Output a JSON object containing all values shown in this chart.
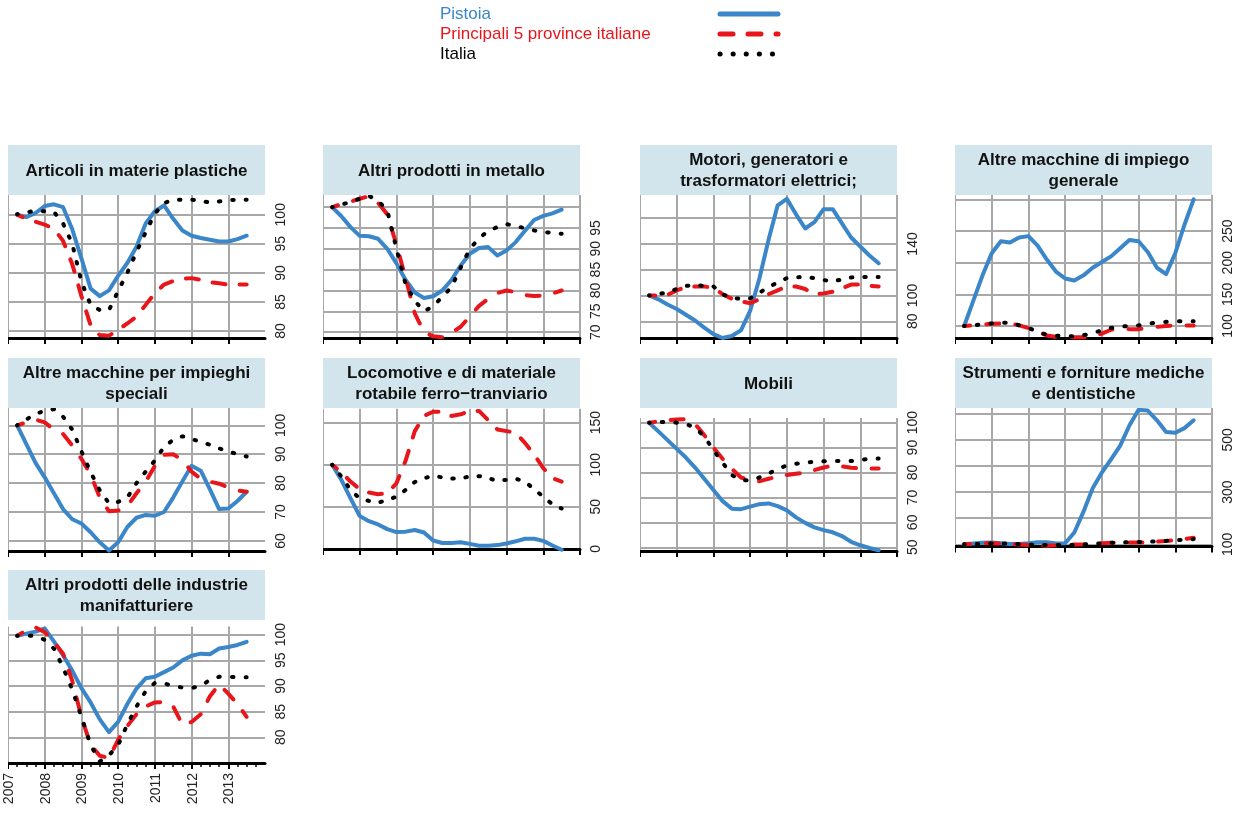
{
  "chart_data": [
    {
      "type": "line",
      "title": "Articoli in materie plastiche",
      "legend": "top",
      "marker": "none",
      "grid": true,
      "tick_labels": "y",
      "xlim": [
        2007,
        2014
      ],
      "xticks": [
        2007,
        2008,
        2009,
        2010,
        2011,
        2012,
        2013
      ],
      "ylim": [
        78.8,
        103.4
      ],
      "yticks": [
        80,
        85,
        90,
        95,
        100
      ],
      "x": [
        2007.25,
        2007.5,
        2007.75,
        2008,
        2008.25,
        2008.5,
        2008.75,
        2009,
        2009.25,
        2009.5,
        2009.75,
        2010,
        2010.25,
        2010.5,
        2010.75,
        2011,
        2011.25,
        2011.5,
        2011.75,
        2012,
        2012.25,
        2012.5,
        2012.75,
        2013,
        2013.25,
        2013.5
      ],
      "series": [
        {
          "name": "Pistoia",
          "color": "#3a86c8",
          "line_style": "solid",
          "values": [
            100,
            99.6,
            100.3,
            101.5,
            101.8,
            101.3,
            97.5,
            92.5,
            87.3,
            86,
            87,
            89.5,
            91.7,
            94.5,
            98.5,
            100.6,
            101.6,
            99.3,
            97.3,
            96.4,
            96,
            95.7,
            95.4,
            95.4,
            95.8,
            96.4
          ]
        },
        {
          "name": "Principali 5 province italiane",
          "color": "#e8151b",
          "line_style": "dashed",
          "values": [
            100,
            99.3,
            98.8,
            98.3,
            97.6,
            95.5,
            91.5,
            86,
            81,
            79.3,
            79.2,
            80.2,
            81.3,
            82.5,
            84.5,
            86.5,
            88,
            88.6,
            89,
            89.1,
            88.8,
            88.4,
            88.2,
            88,
            88,
            88
          ]
        },
        {
          "name": "Italia",
          "color": "#000000",
          "line_style": "dotted",
          "values": [
            100.1,
            100.4,
            100.7,
            100.6,
            100.5,
            98.5,
            95,
            88.5,
            84.5,
            83.6,
            83.6,
            86.9,
            90,
            93.6,
            97,
            100.2,
            102,
            102.6,
            102.6,
            102.6,
            102.4,
            102.1,
            102.3,
            102.5,
            102.6,
            102.6
          ]
        }
      ]
    },
    {
      "type": "line",
      "title": "Altri prodotti in metallo",
      "marker": "none",
      "grid": true,
      "tick_labels": "y",
      "ylim": [
        68.6,
        102.9
      ],
      "yticks": [
        70,
        75,
        80,
        85,
        90,
        95,
        {
          "value": 100,
          "label": null
        }
      ],
      "categories": [
        null,
        null,
        null,
        null,
        null,
        null,
        null,
        null,
        null,
        null,
        null,
        null,
        null,
        null,
        null,
        null,
        null,
        null,
        null,
        null,
        null,
        null,
        null,
        null,
        null,
        null,
        null,
        null,
        null
      ],
      "series": [
        {
          "color": "#3a86c8",
          "line_style": "solid",
          "values": [
            null,
            100,
            97.8,
            95.2,
            93.1,
            93,
            92.4,
            90,
            86.5,
            82.5,
            79.5,
            78.2,
            78.6,
            80,
            82.5,
            86,
            88.8,
            90.2,
            90.4,
            88.4,
            89.6,
            91.6,
            94.3,
            96.9,
            97.9,
            98.5,
            99.4,
            null,
            null
          ]
        },
        {
          "color": "#e8151b",
          "line_style": "dashed",
          "values": [
            null,
            100,
            100.7,
            101.3,
            102,
            102.6,
            101,
            98.3,
            91,
            83,
            74.5,
            70,
            69,
            68.8,
            69.8,
            71.3,
            73.8,
            76.3,
            78,
            79.4,
            80,
            79.6,
            78.9,
            78.7,
            78.8,
            79.3,
            80,
            null,
            null
          ]
        },
        {
          "color": "#000000",
          "line_style": "dotted",
          "values": [
            null,
            100,
            100.6,
            101.2,
            102,
            102.7,
            101.5,
            99.2,
            90,
            81.5,
            77.5,
            75,
            76.2,
            78.5,
            80.8,
            85.5,
            90,
            92.5,
            94.3,
            95.2,
            95.9,
            95.5,
            94.9,
            94.4,
            94,
            93.8,
            93.6,
            null,
            null
          ]
        }
      ]
    },
    {
      "type": "line",
      "title": "Motori, generatori e trasformatori elettrici;",
      "marker": "none",
      "grid": true,
      "tick_labels": "y",
      "ylim": [
        67,
        178
      ],
      "yticks": [
        80,
        100,
        {
          "value": 120,
          "label": null
        },
        140,
        {
          "value": 160,
          "label": null
        }
      ],
      "categories": [
        null,
        null,
        null,
        null,
        null,
        null,
        null,
        null,
        null,
        null,
        null,
        null,
        null,
        null,
        null,
        null,
        null,
        null,
        null,
        null,
        null,
        null,
        null,
        null,
        null,
        null,
        null,
        null,
        null
      ],
      "series": [
        {
          "color": "#3a86c8",
          "line_style": "solid",
          "values": [
            null,
            100,
            97,
            93,
            89.5,
            85,
            80.6,
            75,
            70,
            67,
            68.6,
            73,
            88,
            113,
            143,
            170,
            175,
            163,
            152,
            157,
            167,
            167,
            156,
            145,
            138,
            131,
            125,
            null,
            null
          ]
        },
        {
          "color": "#e8151b",
          "line_style": "dashed",
          "values": [
            null,
            100,
            100,
            100.5,
            104,
            106.5,
            107,
            107,
            106,
            101,
            97.5,
            95.5,
            94,
            97,
            101,
            104,
            107,
            107,
            105,
            101,
            101.5,
            103,
            105.5,
            108.5,
            108.5,
            107.5,
            107,
            null,
            null
          ]
        },
        {
          "color": "#000000",
          "line_style": "dotted",
          "values": [
            null,
            100,
            101,
            102.5,
            105,
            107.5,
            108,
            107.5,
            107,
            101,
            98,
            97.5,
            97.8,
            102,
            106.6,
            110,
            113.5,
            114.2,
            114.4,
            113.5,
            112,
            111,
            112.5,
            114,
            114.4,
            114.4,
            114.4,
            null,
            null
          ]
        }
      ]
    },
    {
      "type": "line",
      "title": "Altre macchine di impiego generale",
      "marker": "none",
      "grid": true,
      "tick_labels": "y",
      "ylim": [
        81,
        307
      ],
      "yticks": [
        100,
        150,
        200,
        250,
        {
          "value": 300,
          "label": null
        }
      ],
      "categories": [
        null,
        null,
        null,
        null,
        null,
        null,
        null,
        null,
        null,
        null,
        null,
        null,
        null,
        null,
        null,
        null,
        null,
        null,
        null,
        null,
        null,
        null,
        null,
        null,
        null,
        null,
        null,
        null,
        null
      ],
      "series": [
        {
          "color": "#3a86c8",
          "line_style": "solid",
          "values": [
            null,
            100,
            140,
            180,
            215,
            234,
            232,
            240,
            242,
            227,
            205,
            186,
            175,
            172,
            180,
            192,
            201,
            210,
            223,
            236,
            234,
            217,
            192,
            182,
            215,
            260,
            300,
            null,
            null
          ]
        },
        {
          "color": "#e8151b",
          "line_style": "dashed",
          "values": [
            null,
            100,
            101,
            102.5,
            103.5,
            104,
            104.4,
            101,
            96.8,
            91,
            85,
            83,
            82.5,
            82.3,
            82,
            82,
            88,
            94,
            96,
            95,
            95,
            97,
            98.5,
            100,
            101,
            101,
            100.6,
            null,
            null
          ]
        },
        {
          "color": "#000000",
          "line_style": "dotted",
          "values": [
            null,
            100,
            101.2,
            102.3,
            104,
            105,
            105.5,
            101,
            97,
            91,
            86,
            84.5,
            84,
            83.5,
            85.5,
            88.6,
            93,
            97,
            99,
            100,
            101,
            103.5,
            105.7,
            106.5,
            107.3,
            107.6,
            107.6,
            null,
            null
          ]
        }
      ]
    },
    {
      "type": "line",
      "title": "Altre macchine per impieghi speciali",
      "marker": "none",
      "grid": true,
      "tick_labels": "y",
      "xlim": [
        2007,
        2014
      ],
      "xticks": [
        2007,
        2008,
        2009,
        2010,
        2011,
        2012,
        2013
      ],
      "ylim": [
        56.5,
        106
      ],
      "yticks": [
        60,
        70,
        80,
        90,
        100
      ],
      "x": [
        2007.25,
        2007.5,
        2007.75,
        2008,
        2008.25,
        2008.5,
        2008.75,
        2009,
        2009.25,
        2009.5,
        2009.75,
        2010,
        2010.25,
        2010.5,
        2010.75,
        2011,
        2011.25,
        2011.5,
        2011.75,
        2012,
        2012.25,
        2012.5,
        2012.75,
        2013,
        2013.25,
        2013.5
      ],
      "series": [
        {
          "color": "#3a86c8",
          "line_style": "solid",
          "values": [
            100,
            93.5,
            87,
            82,
            76.5,
            71,
            67.5,
            66,
            63,
            59.5,
            56.7,
            59.5,
            64.8,
            68,
            69,
            68.7,
            70,
            75,
            80.6,
            86,
            84.3,
            77.8,
            71,
            71.2,
            73.8,
            77
          ]
        },
        {
          "color": "#e8151b",
          "line_style": "dashed",
          "values": [
            100,
            101,
            102,
            101,
            98.5,
            97,
            93,
            88.4,
            83,
            75,
            70.3,
            70.5,
            72,
            76.5,
            80.5,
            86,
            89.8,
            90,
            88,
            84,
            81.5,
            80.5,
            79.8,
            78.5,
            77.5,
            77
          ]
        },
        {
          "color": "#000000",
          "line_style": "dotted",
          "values": [
            100,
            102,
            104,
            105,
            105.6,
            103,
            98.5,
            91,
            83.8,
            77.5,
            73,
            73.5,
            75,
            80,
            84,
            87.8,
            92.5,
            95,
            96.2,
            95.3,
            94.2,
            93.3,
            92,
            91,
            90,
            89.2
          ]
        }
      ]
    },
    {
      "type": "line",
      "title": "Locomotive e di materiale rotabile ferro−tranviario",
      "marker": "none",
      "grid": true,
      "tick_labels": "y",
      "ylim": [
        -2.5,
        166.5
      ],
      "yticks": [
        0,
        50,
        100,
        150
      ],
      "categories": [
        null,
        null,
        null,
        null,
        null,
        null,
        null,
        null,
        null,
        null,
        null,
        null,
        null,
        null,
        null,
        null,
        null,
        null,
        null,
        null,
        null,
        null,
        null,
        null,
        null,
        null,
        null,
        null,
        null
      ],
      "series": [
        {
          "color": "#3a86c8",
          "line_style": "solid",
          "values": [
            null,
            100,
            82,
            60,
            39,
            33,
            29,
            23.5,
            20,
            20.5,
            22.4,
            19.5,
            10,
            7,
            7,
            8,
            6,
            3.8,
            3.8,
            4.5,
            6.5,
            9,
            12,
            12,
            9.5,
            4,
            -1,
            null,
            null
          ]
        },
        {
          "color": "#e8151b",
          "line_style": "dashed",
          "values": [
            null,
            100,
            91,
            80,
            71,
            67,
            65,
            66,
            78,
            105,
            140,
            158,
            163,
            163,
            158,
            160,
            164,
            164,
            153,
            142,
            140,
            138,
            126,
            112,
            96,
            84,
            80,
            null,
            null
          ]
        },
        {
          "color": "#000000",
          "line_style": "dotted",
          "values": [
            null,
            100,
            86,
            70,
            60,
            57,
            55,
            58,
            62,
            70,
            79.5,
            84,
            86.7,
            85,
            83.5,
            84,
            86,
            86.5,
            84,
            81,
            82,
            83.3,
            80,
            71,
            62,
            53,
            48,
            null,
            null
          ]
        }
      ]
    },
    {
      "type": "line",
      "title": "Mobili",
      "marker": "none",
      "grid": true,
      "tick_labels": "y",
      "ylim": [
        48.5,
        101.9
      ],
      "yticks": [
        50,
        60,
        70,
        80,
        90,
        100
      ],
      "categories": [
        null,
        null,
        null,
        null,
        null,
        null,
        null,
        null,
        null,
        null,
        null,
        null,
        null,
        null,
        null,
        null,
        null,
        null,
        null,
        null,
        null,
        null,
        null,
        null,
        null,
        null,
        null,
        null,
        null
      ],
      "series": [
        {
          "color": "#3a86c8",
          "line_style": "solid",
          "values": [
            null,
            100,
            96.5,
            93,
            89.5,
            86,
            82,
            77.5,
            73,
            68.5,
            65.5,
            65.3,
            66.3,
            67.3,
            67.6,
            66.5,
            64.8,
            62,
            59.8,
            58,
            56.9,
            56,
            54.5,
            52.2,
            50.8,
            49.7,
            48.8,
            null,
            null
          ]
        },
        {
          "color": "#e8151b",
          "line_style": "dashed",
          "values": [
            null,
            100,
            100.5,
            101,
            101.3,
            101.4,
            99.5,
            95,
            90,
            85.5,
            81.5,
            78,
            77,
            76.5,
            77.5,
            78.3,
            79,
            79.5,
            80,
            81,
            82,
            82.8,
            82.5,
            81.9,
            81.7,
            81.6,
            81.6,
            null,
            null
          ]
        },
        {
          "color": "#000000",
          "line_style": "dotted",
          "values": [
            null,
            100,
            100.2,
            100.4,
            100,
            99.5,
            98,
            94.5,
            89,
            84,
            79,
            77,
            76.8,
            78,
            79.5,
            81.5,
            82.8,
            83.5,
            84,
            84.3,
            84.5,
            84.6,
            84.6,
            84.6,
            85,
            85.5,
            85.6,
            null,
            null
          ]
        }
      ]
    },
    {
      "type": "line",
      "title": "Strumenti e forniture mediche e dentistiche",
      "marker": "none",
      "grid": true,
      "tick_labels": "y",
      "ylim": [
        92,
        622
      ],
      "yticks": [
        100,
        {
          "value": 200,
          "label": null
        },
        300,
        {
          "value": 400,
          "label": null
        },
        500,
        {
          "value": 600,
          "label": null
        }
      ],
      "categories": [
        null,
        null,
        null,
        null,
        null,
        null,
        null,
        null,
        null,
        null,
        null,
        null,
        null,
        null,
        null,
        null,
        null,
        null,
        null,
        null,
        null,
        null,
        null,
        null,
        null,
        null,
        null,
        null,
        null
      ],
      "series": [
        {
          "color": "#3a86c8",
          "line_style": "solid",
          "values": [
            null,
            100,
            103,
            106,
            107,
            104,
            101,
            101,
            104,
            108,
            108,
            103,
            104,
            145,
            225,
            315,
            375,
            425,
            478,
            555,
            615,
            612,
            575,
            530,
            527,
            545,
            575,
            null,
            null
          ]
        },
        {
          "color": "#e8151b",
          "line_style": "dashed",
          "values": [
            null,
            100,
            102,
            104,
            104,
            103,
            101,
            99,
            97,
            96,
            95,
            96,
            98,
            99,
            100,
            102,
            104,
            106,
            107,
            107,
            107,
            108,
            110,
            113,
            116,
            120,
            125,
            null,
            null
          ]
        },
        {
          "color": "#000000",
          "line_style": "dotted",
          "values": [
            null,
            100,
            101,
            102,
            103,
            103,
            103,
            101,
            99,
            97,
            97,
            97,
            97,
            97,
            99,
            102,
            104,
            106,
            107,
            108,
            109,
            110,
            111,
            113,
            115,
            118,
            120,
            null,
            null
          ]
        }
      ]
    },
    {
      "type": "line",
      "title": "Altri prodotti delle industrie manifatturiere",
      "marker": "none",
      "grid": true,
      "xlim": [
        2007,
        2014
      ],
      "xticks": [
        2007,
        2008,
        2009,
        2010,
        2011,
        2012,
        2013
      ],
      "ylim": [
        75,
        101.6
      ],
      "yticks": [
        80,
        85,
        90,
        95,
        100
      ],
      "x": [
        2007.25,
        2007.5,
        2007.75,
        2008,
        2008.25,
        2008.5,
        2008.75,
        2009,
        2009.25,
        2009.5,
        2009.75,
        2010,
        2010.25,
        2010.5,
        2010.75,
        2011,
        2011.25,
        2011.5,
        2011.75,
        2012,
        2012.25,
        2012.5,
        2012.75,
        2013,
        2013.25,
        2013.5
      ],
      "series": [
        {
          "color": "#3a86c8",
          "line_style": "solid",
          "values": [
            99.8,
            100.2,
            100.6,
            101.2,
            98.7,
            96,
            93,
            89.6,
            86.8,
            83.5,
            81,
            83,
            86.5,
            89.5,
            91.5,
            91.8,
            92.7,
            93.6,
            95,
            95.9,
            96.3,
            96.2,
            97.3,
            97.6,
            98,
            98.6
          ]
        },
        {
          "color": "#e8151b",
          "line_style": "dashed",
          "values": [
            99.8,
            100.8,
            101.4,
            100.5,
            98.6,
            96.3,
            91,
            84,
            78.5,
            76.4,
            76,
            79.5,
            82.2,
            84.5,
            86,
            86.8,
            86.9,
            86,
            82.5,
            83,
            84.5,
            88,
            90.3,
            88.5,
            86.5,
            84
          ]
        },
        {
          "color": "#000000",
          "line_style": "dotted",
          "values": [
            99.8,
            99.8,
            99.8,
            99,
            97.3,
            93.6,
            89.3,
            84,
            78.5,
            75.3,
            76.5,
            78.5,
            82.5,
            86,
            89,
            90.6,
            90.5,
            90,
            89.7,
            89.6,
            90,
            91.2,
            91.8,
            91.8,
            91.7,
            91.7
          ]
        }
      ]
    }
  ]
}
